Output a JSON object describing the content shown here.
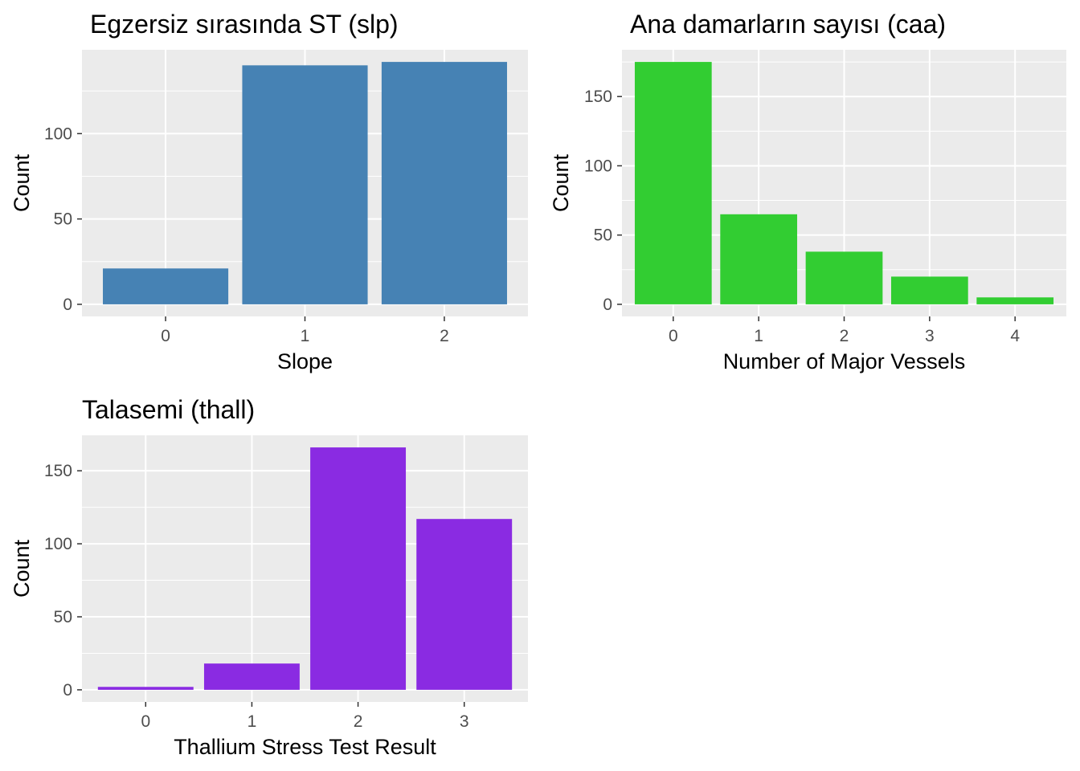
{
  "chart_data": [
    {
      "type": "bar",
      "title": "Egzersiz sırasında ST (slp)",
      "xlabel": "Slope",
      "ylabel": "Count",
      "categories": [
        "0",
        "1",
        "2"
      ],
      "values": [
        21,
        140,
        142
      ],
      "yticks": [
        0,
        50,
        100
      ],
      "ylim": [
        -7.1,
        149.1
      ],
      "grid": true,
      "bar_color": "#4682B4",
      "panel_background": "#EBEBEB"
    },
    {
      "type": "bar",
      "title": "Ana damarların sayısı  (caa)",
      "xlabel": "Number of Major Vessels",
      "ylabel": "Count",
      "categories": [
        "0",
        "1",
        "2",
        "3",
        "4"
      ],
      "values": [
        175,
        65,
        38,
        20,
        5
      ],
      "yticks": [
        0,
        50,
        100,
        150
      ],
      "ylim": [
        -8.75,
        183.75
      ],
      "grid": true,
      "bar_color": "#32CD32",
      "panel_background": "#EBEBEB"
    },
    {
      "type": "bar",
      "title": "Talasemi (thall)",
      "xlabel": "Thallium Stress Test Result",
      "ylabel": "Count",
      "categories": [
        "0",
        "1",
        "2",
        "3"
      ],
      "values": [
        2,
        18,
        166,
        117
      ],
      "yticks": [
        0,
        50,
        100,
        150
      ],
      "ylim": [
        -8.3,
        174.3
      ],
      "grid": true,
      "bar_color": "#8A2BE2",
      "panel_background": "#EBEBEB"
    }
  ]
}
